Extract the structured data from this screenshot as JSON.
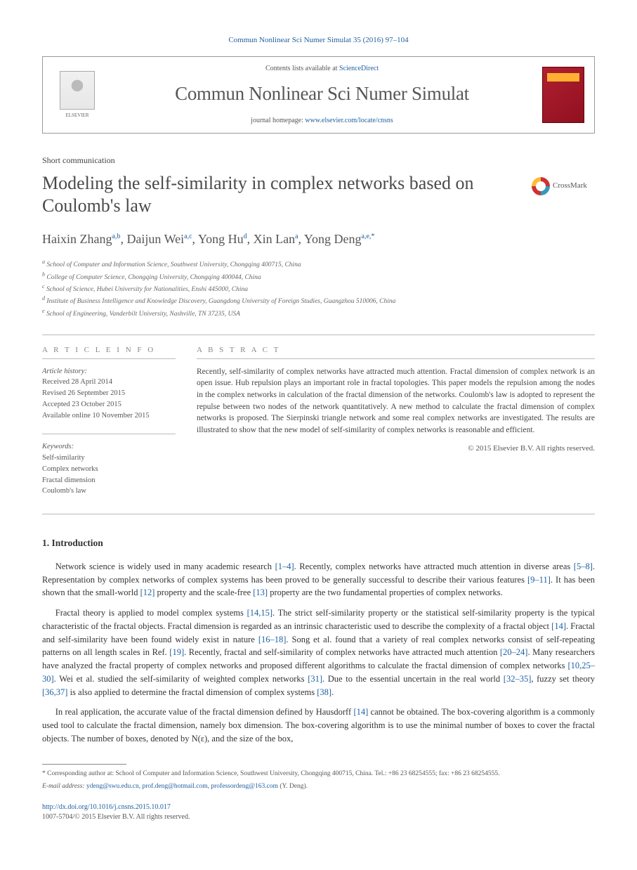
{
  "citation": "Commun Nonlinear Sci Numer Simulat 35 (2016) 97–104",
  "header": {
    "contents_prefix": "Contents lists available at ",
    "contents_link": "ScienceDirect",
    "journal_name": "Commun Nonlinear Sci Numer Simulat",
    "homepage_prefix": "journal homepage: ",
    "homepage_link": "www.elsevier.com/locate/cnsns",
    "publisher": "ELSEVIER"
  },
  "crossmark_label": "CrossMark",
  "article_type": "Short communication",
  "title": "Modeling the self-similarity in complex networks based on Coulomb's law",
  "authors": [
    {
      "name": "Haixin Zhang",
      "sup": "a,b"
    },
    {
      "name": "Daijun Wei",
      "sup": "a,c"
    },
    {
      "name": "Yong Hu",
      "sup": "d"
    },
    {
      "name": "Xin Lan",
      "sup": "a"
    },
    {
      "name": "Yong Deng",
      "sup": "a,e,*"
    }
  ],
  "affiliations": [
    {
      "sup": "a",
      "text": "School of Computer and Information Science, Southwest University, Chongqing 400715, China"
    },
    {
      "sup": "b",
      "text": "College of Computer Science, Chongqing University, Chongqing 400044, China"
    },
    {
      "sup": "c",
      "text": "School of Science, Hubei University for Nationalities, Enshi 445000, China"
    },
    {
      "sup": "d",
      "text": "Institute of Business Intelligence and Knowledge Discovery, Guangdong University of Foreign Studies, Guangzhou 510006, China"
    },
    {
      "sup": "e",
      "text": "School of Engineering, Vanderbilt University, Nashville, TN 37235, USA"
    }
  ],
  "info_heading": "A R T I C L E   I N F O",
  "abstract_heading": "A B S T R A C T",
  "history": {
    "label": "Article history:",
    "received": "Received 28 April 2014",
    "revised": "Revised 26 September 2015",
    "accepted": "Accepted 23 October 2015",
    "online": "Available online 10 November 2015"
  },
  "keywords": {
    "label": "Keywords:",
    "items": [
      "Self-similarity",
      "Complex networks",
      "Fractal dimension",
      "Coulomb's law"
    ]
  },
  "abstract_text": "Recently, self-similarity of complex networks have attracted much attention. Fractal dimension of complex network is an open issue. Hub repulsion plays an important role in fractal topologies. This paper models the repulsion among the nodes in the complex networks in calculation of the fractal dimension of the networks. Coulomb's law is adopted to represent the repulse between two nodes of the network quantitatively. A new method to calculate the fractal dimension of complex networks is proposed. The Sierpinski triangle network and some real complex networks are investigated. The results are illustrated to show that the new model of self-similarity of complex networks is reasonable and efficient.",
  "copyright": "© 2015 Elsevier B.V. All rights reserved.",
  "intro_heading": "1. Introduction",
  "paragraphs": {
    "p1_a": "Network science is widely used in many academic research ",
    "p1_r1": "[1–4]",
    "p1_b": ". Recently, complex networks have attracted much attention in diverse areas ",
    "p1_r2": "[5–8]",
    "p1_c": ". Representation by complex networks of complex systems has been proved to be generally successful to describe their various features ",
    "p1_r3": "[9–11]",
    "p1_d": ". It has been shown that the small-world ",
    "p1_r4": "[12]",
    "p1_e": " property and the scale-free ",
    "p1_r5": "[13]",
    "p1_f": " property are the two fundamental properties of complex networks.",
    "p2_a": "Fractal theory is applied to model complex systems ",
    "p2_r1": "[14,15]",
    "p2_b": ". The strict self-similarity property or the statistical self-similarity property is the typical characteristic of the fractal objects. Fractal dimension is regarded as an intrinsic characteristic used to describe the complexity of a fractal object ",
    "p2_r2": "[14]",
    "p2_c": ". Fractal and self-similarity have been found widely exist in nature ",
    "p2_r3": "[16–18]",
    "p2_d": ". Song et al. found that a variety of real complex networks consist of self-repeating patterns on all length scales in Ref. ",
    "p2_r4": "[19]",
    "p2_e": ". Recently, fractal and self-similarity of complex networks have attracted much attention ",
    "p2_r5": "[20–24]",
    "p2_f": ". Many researchers have analyzed the fractal property of complex networks and proposed different algorithms to calculate the fractal dimension of complex networks ",
    "p2_r6": "[10,25–30]",
    "p2_g": ". Wei et al. studied the self-similarity of weighted complex networks ",
    "p2_r7": "[31]",
    "p2_h": ". Due to the essential uncertain in the real world ",
    "p2_r8": "[32–35]",
    "p2_i": ", fuzzy set theory ",
    "p2_r9": "[36,37]",
    "p2_j": " is also applied to determine the fractal dimension of complex systems ",
    "p2_r10": "[38]",
    "p2_k": ".",
    "p3_a": "In real application, the accurate value of the fractal dimension defined by Hausdorff ",
    "p3_r1": "[14]",
    "p3_b": " cannot be obtained. The box-covering algorithm is a commonly used tool to calculate the fractal dimension, namely box dimension. The box-covering algorithm is to use the minimal number of boxes to cover the fractal objects. The number of boxes, denoted by N(ε), and the size of the box,"
  },
  "footnotes": {
    "corr_star": "*",
    "corr_text": "Corresponding author at: School of Computer and Information Science, Southwest University, Chongqing 400715, China. Tel.: +86 23 68254555; fax: +86 23 68254555.",
    "email_label": "E-mail address: ",
    "emails": [
      "ydeng@swu.edu.cn",
      "prof.deng@hotmail.com",
      "professordeng@163.com"
    ],
    "email_person": " (Y. Deng)."
  },
  "doi": {
    "link": "http://dx.doi.org/10.1016/j.cnsns.2015.10.017",
    "issn_line": "1007-5704/© 2015 Elsevier B.V. All rights reserved."
  },
  "colors": {
    "link": "#2060a0",
    "text": "#333333",
    "muted": "#666666",
    "rule": "#bbbbbb"
  }
}
